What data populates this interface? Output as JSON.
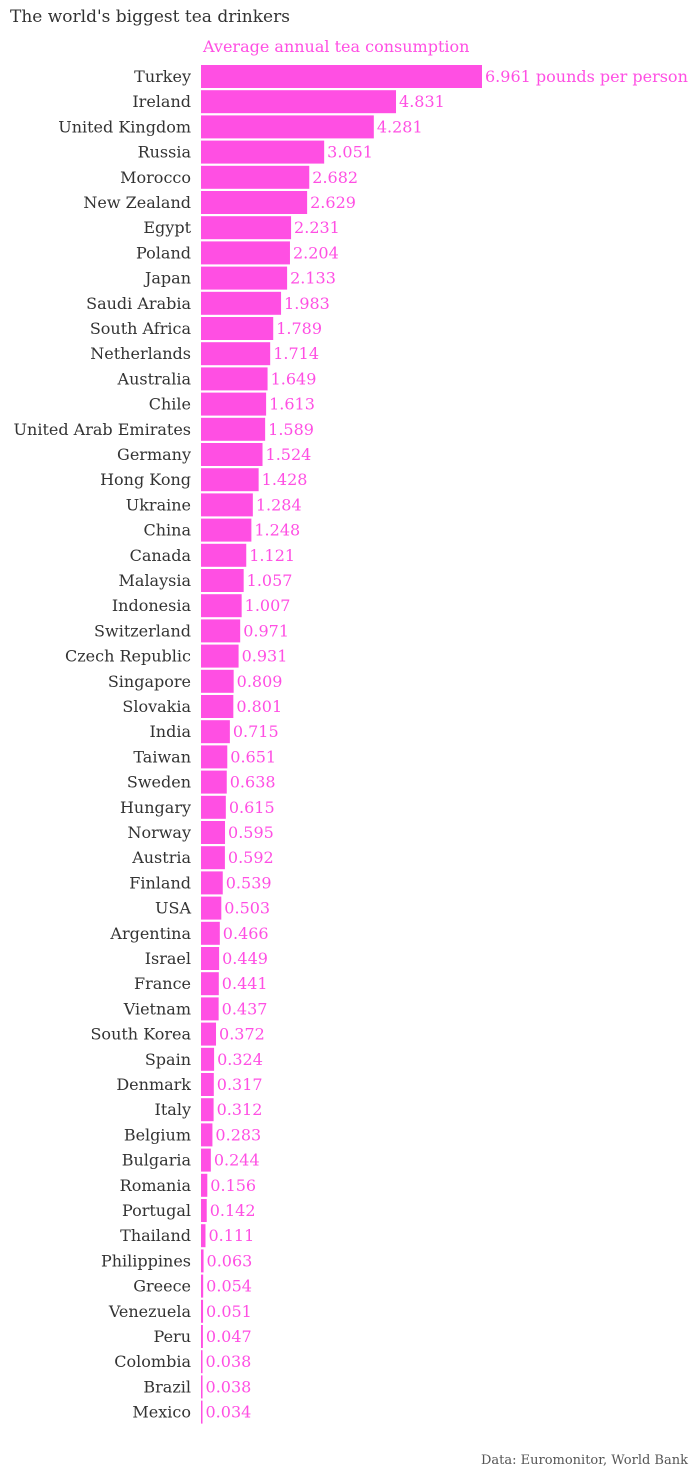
{
  "title": "The world's biggest tea drinkers",
  "subtitle": "Average annual tea consumption",
  "source": "Data: Euromonitor, World Bank",
  "colors": {
    "bar": "#ff4fe3",
    "accent_text": "#ff4fe3"
  },
  "chart_data": {
    "type": "bar",
    "orientation": "horizontal",
    "title": "The world's biggest tea drinkers",
    "subtitle": "Average annual tea consumption",
    "unit": "pounds per person",
    "xlim": [
      0,
      6.961
    ],
    "grid": false,
    "categories": [
      "Turkey",
      "Ireland",
      "United Kingdom",
      "Russia",
      "Morocco",
      "New Zealand",
      "Egypt",
      "Poland",
      "Japan",
      "Saudi Arabia",
      "South Africa",
      "Netherlands",
      "Australia",
      "Chile",
      "United Arab Emirates",
      "Germany",
      "Hong Kong",
      "Ukraine",
      "China",
      "Canada",
      "Malaysia",
      "Indonesia",
      "Switzerland",
      "Czech Republic",
      "Singapore",
      "Slovakia",
      "India",
      "Taiwan",
      "Sweden",
      "Hungary",
      "Norway",
      "Austria",
      "Finland",
      "USA",
      "Argentina",
      "Israel",
      "France",
      "Vietnam",
      "South Korea",
      "Spain",
      "Denmark",
      "Italy",
      "Belgium",
      "Bulgaria",
      "Romania",
      "Portugal",
      "Thailand",
      "Philippines",
      "Greece",
      "Venezuela",
      "Peru",
      "Colombia",
      "Brazil",
      "Mexico"
    ],
    "values": [
      6.961,
      4.831,
      4.281,
      3.051,
      2.682,
      2.629,
      2.231,
      2.204,
      2.133,
      1.983,
      1.789,
      1.714,
      1.649,
      1.613,
      1.589,
      1.524,
      1.428,
      1.284,
      1.248,
      1.121,
      1.057,
      1.007,
      0.971,
      0.931,
      0.809,
      0.801,
      0.715,
      0.651,
      0.638,
      0.615,
      0.595,
      0.592,
      0.539,
      0.503,
      0.466,
      0.449,
      0.441,
      0.437,
      0.372,
      0.324,
      0.317,
      0.312,
      0.283,
      0.244,
      0.156,
      0.142,
      0.111,
      0.063,
      0.054,
      0.051,
      0.047,
      0.038,
      0.038,
      0.034
    ],
    "value_labels": [
      "6.961 pounds per person",
      "4.831",
      "4.281",
      "3.051",
      "2.682",
      "2.629",
      "2.231",
      "2.204",
      "2.133",
      "1.983",
      "1.789",
      "1.714",
      "1.649",
      "1.613",
      "1.589",
      "1.524",
      "1.428",
      "1.284",
      "1.248",
      "1.121",
      "1.057",
      "1.007",
      "0.971",
      "0.931",
      "0.809",
      "0.801",
      "0.715",
      "0.651",
      "0.638",
      "0.615",
      "0.595",
      "0.592",
      "0.539",
      "0.503",
      "0.466",
      "0.449",
      "0.441",
      "0.437",
      "0.372",
      "0.324",
      "0.317",
      "0.312",
      "0.283",
      "0.244",
      "0.156",
      "0.142",
      "0.111",
      "0.063",
      "0.054",
      "0.051",
      "0.047",
      "0.038",
      "0.038",
      "0.034"
    ]
  }
}
